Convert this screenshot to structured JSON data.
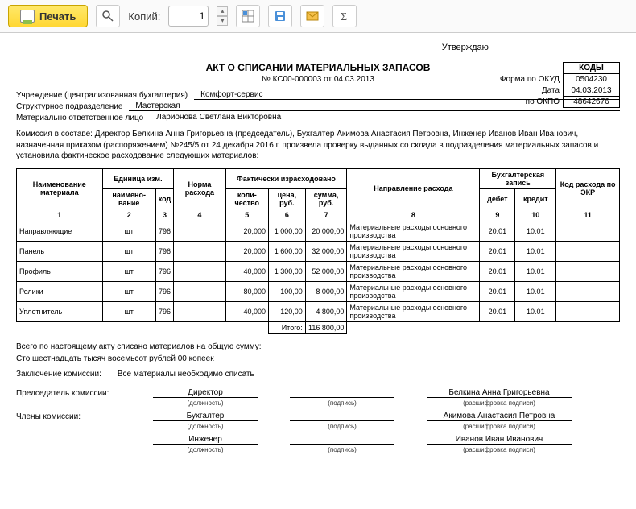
{
  "toolbar": {
    "print_label": "Печать",
    "copies_label": "Копий:",
    "copies_value": "1"
  },
  "approve_label": "Утверждаю",
  "title": "АКТ О СПИСАНИИ МАТЕРИАЛЬНЫХ ЗАПАСОВ",
  "subtitle": "№ КС00-000003 от 04.03.2013",
  "codes": {
    "header": "КОДЫ",
    "okud_label": "Форма по ОКУД",
    "okud": "0504230",
    "date_label": "Дата",
    "date": "04.03.2013",
    "okpo_label": "по ОКПО",
    "okpo": "48642676"
  },
  "info": {
    "org_label": "Учреждение (централизованная бухгалтерия)",
    "org": "Комфорт-сервис",
    "dept_label": "Структурное подразделение",
    "dept": "Мастерская",
    "resp_label": "Материально ответственное лицо",
    "resp": "Ларионова Светлана Викторовна"
  },
  "commission_text": "Комиссия в составе: Директор Белкина Анна Григорьевна (председатель), Бухгалтер Акимова Анастасия Петровна, Инженер Иванов Иван Иванович, назначенная приказом (распоряжением) №245/5 от 24 декабря 2016 г. произвела проверку выданных со склада в подразделения материальных запасов и установила фактическое расходование следующих материалов:",
  "table": {
    "headers": {
      "name": "Наименование материала",
      "unit": "Единица изм.",
      "unit_name": "наимено-вание",
      "unit_code": "код",
      "norm": "Норма расхода",
      "fact": "Фактически израсходовано",
      "qty": "коли-чество",
      "price": "цена, руб.",
      "sum": "сумма, руб.",
      "direction": "Направление расхода",
      "acct": "Бухгалтерская запись",
      "debit": "дебет",
      "credit": "кредит",
      "ekr": "Код расхода по ЭКР"
    },
    "colnums": [
      "1",
      "2",
      "3",
      "4",
      "5",
      "6",
      "7",
      "8",
      "9",
      "10",
      "11"
    ],
    "rows": [
      {
        "name": "Направляющие",
        "unit": "шт",
        "code": "796",
        "norm": "",
        "qty": "20,000",
        "price": "1 000,00",
        "sum": "20 000,00",
        "dir": "Материальные расходы основного производства",
        "debit": "20.01",
        "credit": "10.01",
        "ekr": ""
      },
      {
        "name": "Панель",
        "unit": "шт",
        "code": "796",
        "norm": "",
        "qty": "20,000",
        "price": "1 600,00",
        "sum": "32 000,00",
        "dir": "Материальные расходы основного производства",
        "debit": "20.01",
        "credit": "10.01",
        "ekr": ""
      },
      {
        "name": "Профиль",
        "unit": "шт",
        "code": "796",
        "norm": "",
        "qty": "40,000",
        "price": "1 300,00",
        "sum": "52 000,00",
        "dir": "Материальные расходы основного производства",
        "debit": "20.01",
        "credit": "10.01",
        "ekr": ""
      },
      {
        "name": "Ролики",
        "unit": "шт",
        "code": "796",
        "norm": "",
        "qty": "80,000",
        "price": "100,00",
        "sum": "8 000,00",
        "dir": "Материальные расходы основного производства",
        "debit": "20.01",
        "credit": "10.01",
        "ekr": ""
      },
      {
        "name": "Уплотнитель",
        "unit": "шт",
        "code": "796",
        "norm": "",
        "qty": "40,000",
        "price": "120,00",
        "sum": "4 800,00",
        "dir": "Материальные расходы основного производства",
        "debit": "20.01",
        "credit": "10.01",
        "ekr": ""
      }
    ],
    "total_label": "Итого:",
    "total": "116 800,00"
  },
  "summary": {
    "line1": "Всего по настоящему акту списано материалов на общую сумму:",
    "line2": "Сто шестнадцать тысяч восемьсот рублей 00 копеек",
    "concl_label": "Заключение комиссии:",
    "concl": "Все материалы необходимо списать"
  },
  "signatures": {
    "chair_label": "Председатель комиссии:",
    "members_label": "Члены комиссии:",
    "pos_hint": "(должность)",
    "sig_hint": "(подпись)",
    "name_hint": "(расшифровка подписи)",
    "rows": [
      {
        "role": "chair",
        "pos": "Директор",
        "name": "Белкина Анна Григорьевна"
      },
      {
        "role": "member",
        "pos": "Бухгалтер",
        "name": "Акимова Анастасия Петровна"
      },
      {
        "role": "member",
        "pos": "Инженер",
        "name": "Иванов Иван Иванович"
      }
    ]
  }
}
